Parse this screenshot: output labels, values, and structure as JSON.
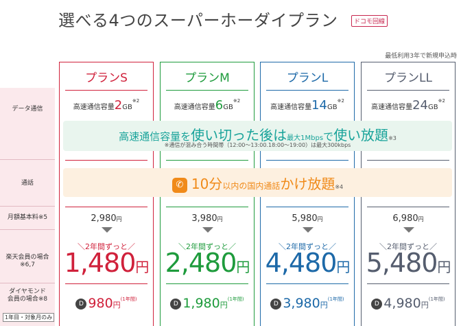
{
  "title": "選べる4つのスーパーホーダイプラン",
  "badge": "ドコモ回線",
  "note_top": "最低利用3年で新規申込時",
  "row_labels": {
    "data": "データ通信",
    "call": "通話",
    "base": "月額基本料",
    "base_note": "※5",
    "member_l1": "楽天会員の場合",
    "member_note": "※6,7",
    "diamond_l1": "ダイヤモンド",
    "diamond_l2": "会員の場合",
    "diamond_note": "※8",
    "only_year": "1年目・対象月のみ"
  },
  "green_band": {
    "p1": "高速通信容量を",
    "p2": "使い切った後は",
    "p3": "最大1Mbps",
    "p4": "で",
    "p5": "使い放題",
    "note": "※3",
    "sub": "※通信が混み合う時間帯（12:00～13:00.18:00～19:00）は最大300kbps"
  },
  "orange_band": {
    "p1": "10分",
    "p2": "以内の国内通話",
    "p3": "かけ放題",
    "note": "※4"
  },
  "common": {
    "speed_label": "高速通信容量",
    "speed_note": "※2",
    "yen": "円",
    "period": "＼2年間ずっと／",
    "year_note": "(1年間)",
    "medal": "D"
  },
  "plans": [
    {
      "name": "プランS",
      "gb_num": "2",
      "gb_unit": "GB",
      "base": "2,980",
      "price": "1,480",
      "diamond": "980",
      "color": "#d0213b"
    },
    {
      "name": "プランM",
      "gb_num": "6",
      "gb_unit": "GB",
      "base": "3,980",
      "price": "2,480",
      "diamond": "1,980",
      "color": "#1e9b3c"
    },
    {
      "name": "プランL",
      "gb_num": "14",
      "gb_unit": "GB",
      "base": "5,980",
      "price": "4,480",
      "diamond": "3,980",
      "color": "#1d69a8"
    },
    {
      "name": "プランLL",
      "gb_num": "24",
      "gb_unit": "GB",
      "base": "6,980",
      "price": "5,480",
      "diamond": "4,980",
      "color": "#555d6e"
    }
  ]
}
